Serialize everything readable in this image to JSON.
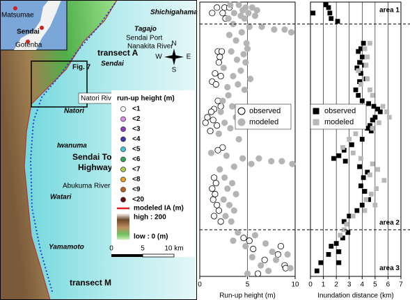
{
  "map": {
    "inset": [
      "Matsumae",
      "Sendai",
      "Gotenba"
    ],
    "places": {
      "shichigahama": "Shichigahama",
      "tagajo": "Tagajo",
      "port": "Sendai Port",
      "nanakita": "Nanakita River",
      "transect_a": "transect A",
      "sendai": "Sendai",
      "fig7": "Fig. 7",
      "natori_river": "Natori River",
      "natori": "Natori",
      "iwanuma": "Iwanuma",
      "highway": [
        "Sendai Tobu",
        "Highway"
      ],
      "abukuma": "Abukuma River",
      "watari": "Watari",
      "yamamoto": "Yamamoto",
      "transect_m": "transect M"
    },
    "compass": {
      "n": "N",
      "w": "W",
      "e": "E",
      "s": "S"
    },
    "legend": {
      "title": "run-up height (m)",
      "items": [
        {
          "label": "<1",
          "color": "#ffffff"
        },
        {
          "label": "<2",
          "color": "#d98ee8"
        },
        {
          "label": "<3",
          "color": "#8e3fb8"
        },
        {
          "label": "<4",
          "color": "#3a3ab8"
        },
        {
          "label": "<5",
          "color": "#3fc4e0"
        },
        {
          "label": "<6",
          "color": "#2eaa55"
        },
        {
          "label": "<7",
          "color": "#a8d040"
        },
        {
          "label": "<8",
          "color": "#f0a020"
        },
        {
          "label": "<9",
          "color": "#c06020"
        },
        {
          "label": "<20",
          "color": "#6a1010"
        }
      ],
      "ia_label": "modeled IA (m)",
      "ia_color": "#e02020",
      "high": "high : 200",
      "low": "low : 0 (m)"
    },
    "scale_labels": [
      "0",
      "5",
      "10 km"
    ]
  },
  "chart_data": [
    {
      "type": "scatter",
      "xlabel": "Run-up height (m)",
      "xlim": [
        0,
        10
      ],
      "xticks": [
        0,
        5,
        10
      ],
      "ylim": [
        0,
        100
      ],
      "grid": true,
      "hlines": [
        92,
        17
      ],
      "series": [
        {
          "name": "observed",
          "color": "#ffffff",
          "edgecolor": "#000000",
          "marker": "circle",
          "x": [
            1.8,
            2.6,
            3.1,
            1.3,
            2.4,
            2.7,
            1.9,
            2.3,
            2.1,
            2.0,
            1.6,
            2.2,
            1.3,
            1.7,
            1.9,
            2.2,
            1.5,
            1.2,
            0.8,
            1.4,
            0.6,
            1.8,
            1.1,
            2.4,
            1.9,
            1.5,
            1.7,
            1.3,
            1.6,
            1.4,
            1.8,
            2.0,
            1.5,
            2.2,
            4.6,
            5.2,
            8.5,
            5.6,
            8.2,
            6.8,
            8.9,
            9.0,
            6.1
          ],
          "y": [
            98,
            98,
            98,
            96,
            96,
            94,
            82,
            82,
            80,
            78,
            74,
            73,
            71,
            70,
            64,
            62,
            61,
            60,
            58,
            57,
            56,
            55,
            53,
            47,
            46,
            36,
            34,
            32,
            30,
            28,
            26,
            24,
            22,
            20,
            14,
            13,
            11,
            10,
            8,
            6,
            4,
            3,
            1
          ]
        },
        {
          "name": "modeled",
          "color": "#b4b4b4",
          "edgecolor": "#b4b4b4",
          "marker": "circle",
          "x": [
            3.2,
            4.1,
            4.8,
            5.5,
            6.0,
            4.5,
            3.6,
            5.1,
            4.3,
            5.8,
            3.0,
            4.7,
            3.5,
            5.2,
            6.5,
            7.8,
            8.9,
            9.6,
            4.4,
            3.1,
            3.8,
            4.9,
            5.0,
            3.3,
            4.6,
            3.9,
            4.8,
            2.5,
            4.3,
            3.5,
            5.3,
            4.0,
            2.9,
            4.7,
            3.0,
            2.4,
            3.4,
            2.2,
            3.8,
            2.6,
            3.2,
            2.0,
            4.1,
            1.2,
            2.8,
            4.5,
            6.2,
            7.5,
            8.6,
            9.7,
            5.4,
            3.6,
            2.1,
            2.6,
            3.4,
            2.9,
            3.8,
            2.5,
            3.1,
            3.6,
            2.7,
            3.3,
            4.0,
            5.8,
            3.5,
            6.9,
            4.8,
            7.6,
            9.2,
            5.5,
            8.0,
            6.4,
            9.5,
            7.2,
            5.0
          ],
          "y": [
            99,
            99,
            98,
            98,
            97,
            97,
            96,
            96,
            95,
            95,
            94,
            94,
            92,
            91,
            91,
            90,
            90,
            89,
            89,
            88,
            86,
            85,
            83,
            82,
            81,
            79,
            78,
            76,
            75,
            73,
            72,
            70,
            69,
            68,
            66,
            64,
            62,
            60,
            58,
            56,
            54,
            52,
            50,
            45,
            44,
            43,
            43,
            42,
            42,
            41,
            41,
            40,
            39,
            36,
            34,
            32,
            30,
            28,
            26,
            24,
            22,
            20,
            16,
            15,
            13,
            12,
            11,
            9,
            8,
            7,
            6,
            4,
            3,
            2,
            1
          ]
        }
      ],
      "legend": "upper left"
    },
    {
      "type": "scatter",
      "xlabel": "Inundation distance (km)",
      "xlim": [
        0,
        7
      ],
      "xticks": [
        0,
        1,
        2,
        3,
        4,
        5,
        6,
        7
      ],
      "ylim": [
        0,
        100
      ],
      "grid": true,
      "hlines": [
        92,
        17
      ],
      "annotations": [
        {
          "text": "area 1",
          "y": 97
        },
        {
          "text": "area 2",
          "y": 19.5
        },
        {
          "text": "area 3",
          "y": 3
        }
      ],
      "series": [
        {
          "name": "observed",
          "color": "#000000",
          "edgecolor": "#000000",
          "marker": "square",
          "x": [
            1.2,
            1.4,
            0.2,
            1.5,
            1.6,
            2.1,
            4.1,
            3.9,
            3.7,
            4.0,
            3.8,
            4.2,
            3.6,
            3.9,
            4.3,
            3.8,
            3.5,
            3.7,
            4.0,
            4.5,
            4.9,
            5.2,
            5.4,
            5.0,
            4.8,
            4.6,
            4.4,
            4.7,
            4.0,
            3.2,
            2.6,
            2.2,
            1.8,
            2.7,
            3.8,
            4.4,
            4.1,
            3.9,
            4.2,
            4.5,
            4.0,
            3.6,
            3.0,
            2.6,
            2.9,
            2.5,
            2.0,
            1.6,
            2.2,
            1.4,
            0.8,
            2.2,
            0.5
          ],
          "y": [
            99,
            98,
            96,
            96,
            94,
            93,
            85,
            83,
            82,
            80,
            78,
            77,
            76,
            74,
            72,
            71,
            68,
            66,
            64,
            63,
            62,
            61,
            60,
            58,
            57,
            55,
            54,
            53,
            50,
            48,
            46,
            44,
            43,
            42,
            40,
            38,
            36,
            33,
            31,
            28,
            26,
            24,
            22,
            20,
            16,
            14,
            12,
            11,
            9,
            8,
            5,
            5,
            2
          ]
        },
        {
          "name": "modeled",
          "color": "#b8b8b8",
          "edgecolor": "#b8b8b8",
          "marker": "square",
          "x": [
            4.6,
            4.2,
            4.4,
            4.3,
            3.7,
            4.4,
            3.9,
            4.6,
            4.8,
            5.6,
            5.9,
            6.1,
            5.3,
            4.8,
            3.5,
            3.0,
            2.5,
            3.3,
            3.9,
            4.8,
            5.2,
            4.6,
            5.7,
            5.1,
            4.7,
            4.3,
            5.0,
            4.2,
            3.3,
            2.8,
            2.6,
            2.3
          ],
          "y": [
            85,
            83,
            80,
            77,
            75,
            72,
            70,
            68,
            66,
            62,
            60,
            58,
            56,
            54,
            52,
            50,
            47,
            45,
            43,
            41,
            39,
            37,
            35,
            32,
            30,
            28,
            26,
            24,
            22,
            19,
            17,
            15
          ]
        }
      ],
      "legend": "upper left"
    }
  ]
}
